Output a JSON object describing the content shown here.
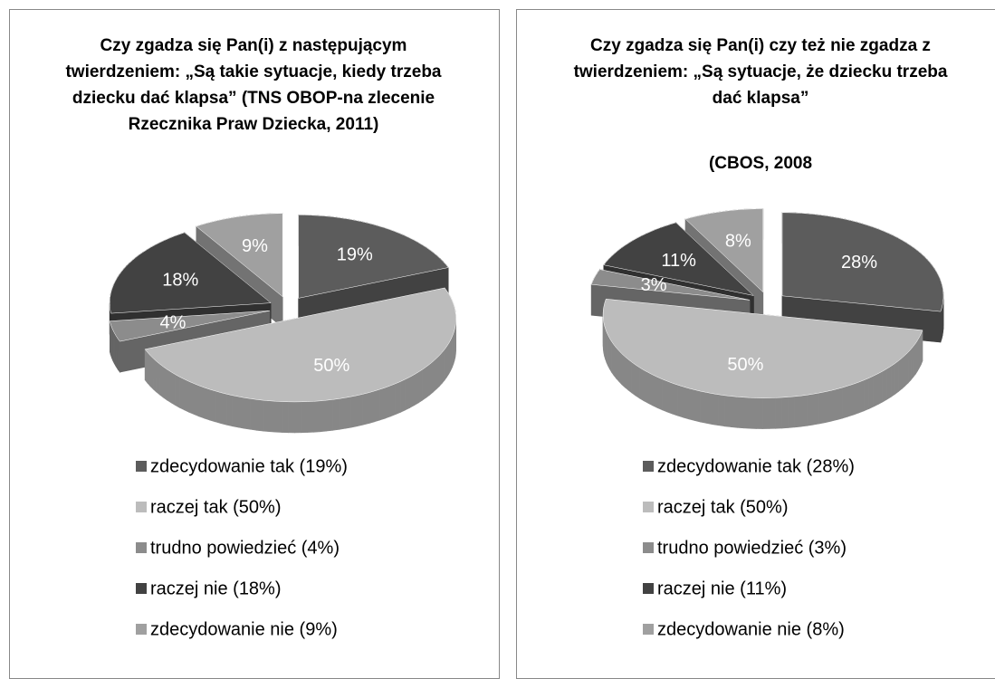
{
  "chart_data": [
    {
      "type": "pie3d",
      "title": "Czy zgadza się Pan(i) z następującym twierdzeniem: „Są takie sytuacje, kiedy trzeba dziecku dać klapsa” (TNS OBOP-na zlecenie Rzecznika Praw Dziecka, 2011)",
      "categories": [
        "zdecydowanie tak (19%)",
        "raczej tak (50%)",
        "trudno powiedzieć (4%)",
        "raczej nie (18%)",
        "zdecydowanie nie (9%)"
      ],
      "values": [
        19,
        50,
        4,
        18,
        9
      ],
      "value_labels": [
        "19%",
        "50%",
        "4%",
        "18%",
        "9%"
      ],
      "colors": [
        "#5c5c5c",
        "#bcbcbc",
        "#8c8c8c",
        "#424242",
        "#a0a0a0"
      ]
    },
    {
      "type": "pie3d",
      "title": "Czy zgadza się Pan(i) czy też nie zgadza  z twierdzeniem: „Są sytuacje, że dziecku trzeba dać klapsa”",
      "subtitle": "(CBOS,  2008",
      "categories": [
        "zdecydowanie tak (28%)",
        "raczej tak (50%)",
        "trudno powiedzieć (3%)",
        "raczej nie (11%)",
        "zdecydowanie nie (8%)"
      ],
      "values": [
        28,
        50,
        3,
        11,
        8
      ],
      "value_labels": [
        "28%",
        "50%",
        "3%",
        "11%",
        "8%"
      ],
      "colors": [
        "#5c5c5c",
        "#bcbcbc",
        "#8c8c8c",
        "#424242",
        "#a0a0a0"
      ]
    }
  ]
}
